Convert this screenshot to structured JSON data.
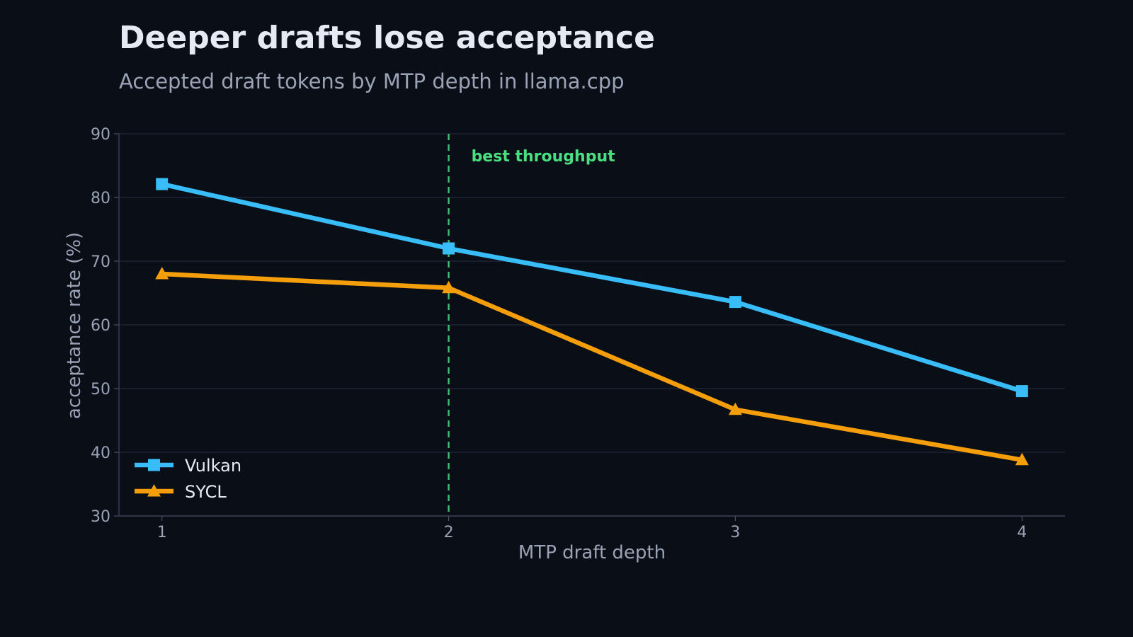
{
  "chart_data": {
    "type": "line",
    "title": "Deeper drafts lose acceptance",
    "subtitle": "Accepted draft tokens by MTP depth in llama.cpp",
    "xlabel": "MTP draft depth",
    "ylabel": "acceptance rate (%)",
    "x": [
      1,
      2,
      3,
      4
    ],
    "x_tick_labels": [
      "1",
      "2",
      "3",
      "4"
    ],
    "xlim": [
      0.85,
      4.15
    ],
    "ylim": [
      30,
      90
    ],
    "y_ticks": [
      30,
      40,
      50,
      60,
      70,
      80,
      90
    ],
    "grid": "horizontal",
    "legend_position": "bottom-left",
    "series": [
      {
        "name": "Vulkan",
        "color": "#38bdf8",
        "marker": "square",
        "values": [
          82.1,
          72.0,
          63.6,
          49.6
        ]
      },
      {
        "name": "SYCL",
        "color": "#f59e0b",
        "marker": "triangle",
        "values": [
          68.0,
          65.8,
          46.7,
          38.8
        ]
      }
    ],
    "annotations": [
      {
        "type": "vertical-line",
        "x": 2,
        "label": "best throughput",
        "color": "#4ade80",
        "style": "dashed"
      }
    ]
  }
}
